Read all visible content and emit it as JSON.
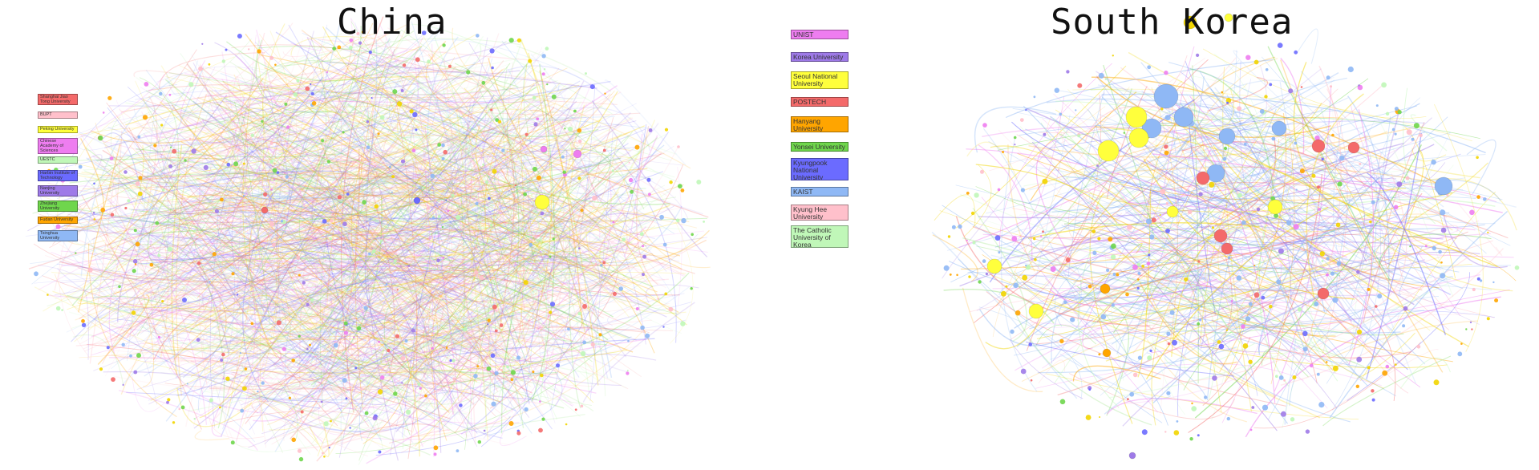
{
  "panels": {
    "china": {
      "title": "China",
      "legend": [
        {
          "label": "Shanghai Jiao Tong University",
          "color": "#f46a6a"
        },
        {
          "label": "BUPT",
          "color": "#ffc0cb"
        },
        {
          "label": "Peking University",
          "color": "#ffff3c"
        },
        {
          "label": "Chinese Academy of Sciences",
          "color": "#ee7df0"
        },
        {
          "label": "UESTC",
          "color": "#c0f7b8"
        },
        {
          "label": "Harbin Institute of Technology",
          "color": "#6b6bff"
        },
        {
          "label": "Nanjing University",
          "color": "#9e7ae8"
        },
        {
          "label": "Zhejiang University",
          "color": "#6fd64c"
        },
        {
          "label": "Fudan University",
          "color": "#ffa500"
        },
        {
          "label": "Tsinghua University",
          "color": "#8fb8f5"
        }
      ]
    },
    "korea": {
      "title": "South Korea",
      "legend": [
        {
          "label": "UNIST",
          "color": "#ee7df0"
        },
        {
          "label": "Korea University",
          "color": "#9e7ae8"
        },
        {
          "label": "Seoul National University",
          "color": "#ffff3c"
        },
        {
          "label": "POSTECH",
          "color": "#f46a6a"
        },
        {
          "label": "Hanyang University",
          "color": "#ffa500"
        },
        {
          "label": "Yonsei University",
          "color": "#6fd64c"
        },
        {
          "label": "Kyungpook National University",
          "color": "#6b6bff"
        },
        {
          "label": "KAIST",
          "color": "#8fb8f5"
        },
        {
          "label": "Kyung Hee University",
          "color": "#ffc0cb"
        },
        {
          "label": "The Catholic University of Korea",
          "color": "#c0f7b8"
        }
      ]
    }
  }
}
